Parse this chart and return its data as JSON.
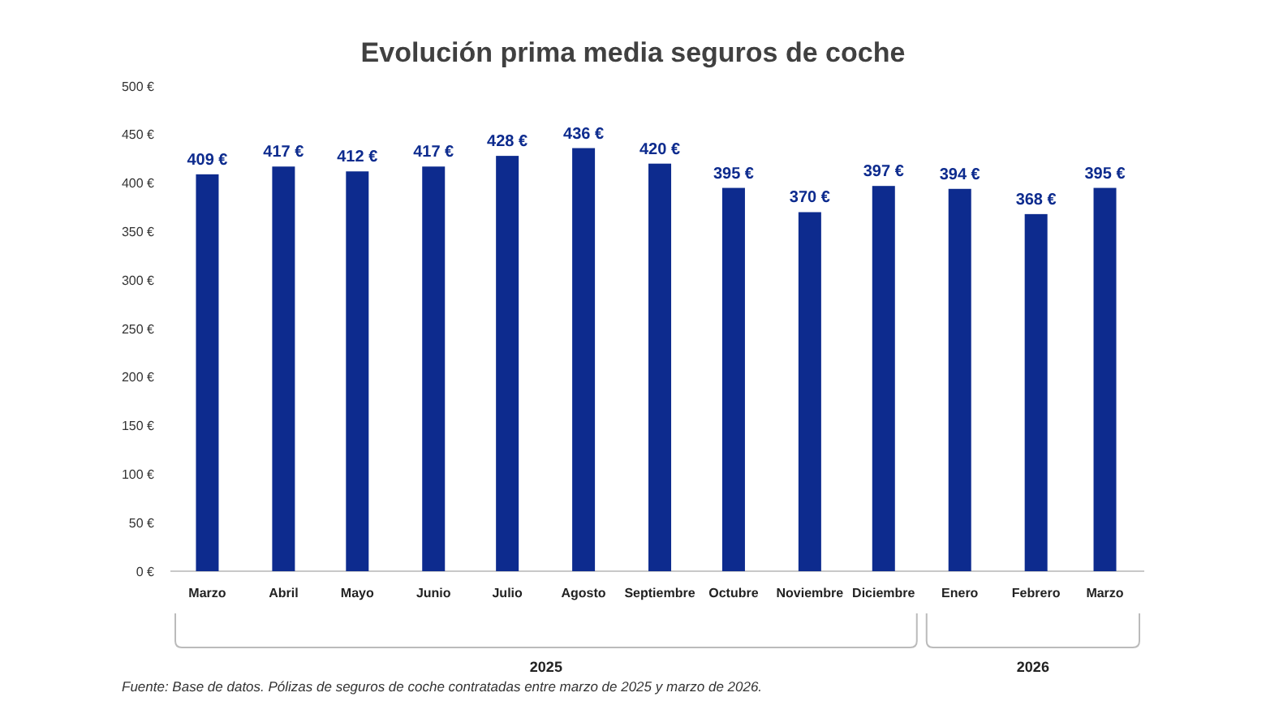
{
  "chart_data": {
    "type": "bar",
    "title": "Evolución prima media seguros de coche",
    "x": [
      "2025-03",
      "2025-04",
      "2025-05",
      "2025-06",
      "2025-07",
      "2025-08",
      "2025-09",
      "2025-10",
      "2025-11",
      "2025-12",
      "2026-01",
      "2026-02",
      "2026-03"
    ],
    "xlim": [
      "2025-02-14",
      "2026-03-17"
    ],
    "xticks": [
      {
        "value": "2025-03",
        "label": "Marzo"
      },
      {
        "value": "2025-04",
        "label": "Abril"
      },
      {
        "value": "2025-05",
        "label": "Mayo"
      },
      {
        "value": "2025-06",
        "label": "Junio"
      },
      {
        "value": "2025-07",
        "label": "Julio"
      },
      {
        "value": "2025-08",
        "label": "Agosto"
      },
      {
        "value": "2025-09",
        "label": "Septiembre"
      },
      {
        "value": "2025-10",
        "label": "Octubre"
      },
      {
        "value": "2025-11",
        "label": "Noviembre"
      },
      {
        "value": "2025-12",
        "label": "Diciembre"
      },
      {
        "value": "2026-01",
        "label": "Enero"
      },
      {
        "value": "2026-02",
        "label": "Febrero"
      },
      {
        "value": "2026-03",
        "label": "Marzo"
      }
    ],
    "values": [
      409,
      417,
      412,
      417,
      428,
      436,
      420,
      395,
      370,
      397,
      394,
      368,
      395
    ],
    "value_labels": [
      "409 €",
      "417 €",
      "412 €",
      "417 €",
      "428 €",
      "436 €",
      "420 €",
      "395 €",
      "370 €",
      "397 €",
      "394 €",
      "368 €",
      "395 €"
    ],
    "color": "#0d2b8e",
    "ylim": [
      0,
      500
    ],
    "yticks": [
      {
        "value": 0,
        "label": "0 €"
      },
      {
        "value": 50,
        "label": "50 €"
      },
      {
        "value": 100,
        "label": "100 €"
      },
      {
        "value": 150,
        "label": "150 €"
      },
      {
        "value": 200,
        "label": "200 €"
      },
      {
        "value": 250,
        "label": "250 €"
      },
      {
        "value": 300,
        "label": "300 €"
      },
      {
        "value": 350,
        "label": "350 €"
      },
      {
        "value": 400,
        "label": "400 €"
      },
      {
        "value": 450,
        "label": "450 €"
      },
      {
        "value": 500,
        "label": "500 €"
      }
    ],
    "grid": false,
    "annotations": [
      "2025",
      "2026",
      "Fuente: Base de datos. Pólizas de seguros de coche contratadas entre marzo de 2025 y marzo de 2026."
    ]
  }
}
